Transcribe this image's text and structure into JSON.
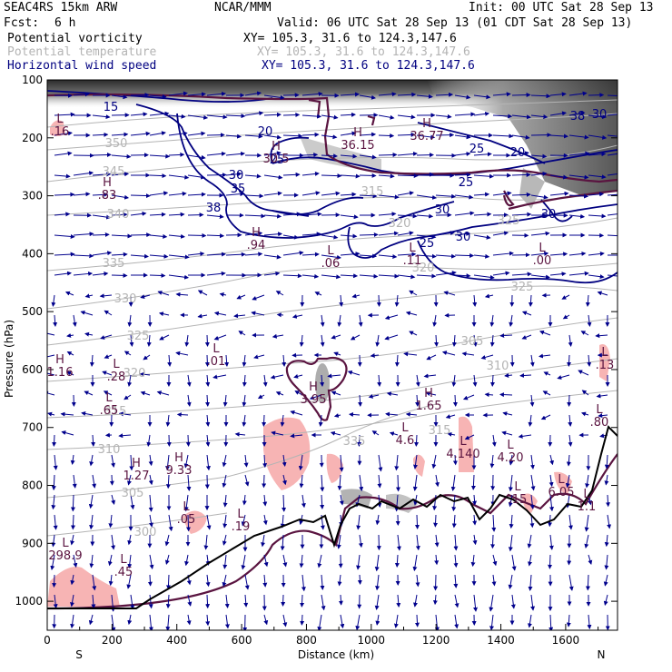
{
  "header": {
    "model": "SEAC4RS 15km ARW",
    "org": "NCAR/MMM",
    "init": "Init: 00 UTC Sat 28 Sep 13",
    "fcst_label": "Fcst:",
    "fcst_value": "6 h",
    "valid": "Valid: 06 UTC Sat 28 Sep 13 (01 CDT Sat 28 Sep 13)",
    "fields": [
      {
        "name": "Potential vorticity",
        "xy": "XY= 105.3, 31.6 to 124.3,147.6",
        "color": "#000000"
      },
      {
        "name": "Potential temperature",
        "xy": "XY= 105.3, 31.6 to 124.3,147.6",
        "color": "#b4b4b4"
      },
      {
        "name": "Horizontal wind speed",
        "xy": "XY= 105.3, 31.6 to 124.3,147.6",
        "color": "#000080"
      }
    ]
  },
  "chart_data": {
    "type": "cross-section",
    "xlabel": "Distance (km)",
    "ylabel": "Pressure (hPa)",
    "xlim": [
      0,
      1760
    ],
    "ylim": [
      1050,
      100
    ],
    "x_ticks": [
      0,
      200,
      400,
      600,
      800,
      1000,
      1200,
      1400,
      1600
    ],
    "y_ticks": [
      100,
      200,
      300,
      400,
      500,
      600,
      700,
      800,
      900,
      1000
    ],
    "x_end_labels": {
      "left": "S",
      "right": "N"
    },
    "colors": {
      "wind_contour": "#000080",
      "theta_contour": "#b4b4b4",
      "pv_contour": "#5a1440",
      "pv_shading": "#f7b4b4",
      "wind_vector": "#00008c",
      "terrain": "#000000"
    },
    "wind_speed_labels": [
      "15",
      "20",
      "25",
      "30",
      "35",
      "38",
      "25",
      "20",
      "25",
      "30",
      "30",
      "25",
      "30",
      "38",
      "30"
    ],
    "theta_labels": [
      "350",
      "345",
      "340",
      "335",
      "330",
      "325",
      "320",
      "315",
      "310",
      "305",
      "300",
      "315",
      "320",
      "325",
      "305",
      "310",
      "315",
      "320",
      "325",
      "335"
    ],
    "extrema": [
      {
        "type": "L",
        "value": ".16"
      },
      {
        "type": "H",
        "value": ".83"
      },
      {
        "type": "H",
        "value": ".94"
      },
      {
        "type": "H",
        "value": "30.5"
      },
      {
        "type": "H",
        "value": "36.15"
      },
      {
        "type": "H",
        "value": "36.77"
      },
      {
        "type": "L",
        "value": ".06"
      },
      {
        "type": "L",
        "value": ".11"
      },
      {
        "type": "L",
        "value": ".00"
      },
      {
        "type": "H",
        "value": "1.16"
      },
      {
        "type": "L",
        "value": ".28"
      },
      {
        "type": "L",
        "value": ".65"
      },
      {
        "type": "L",
        "value": ".01"
      },
      {
        "type": "H",
        "value": "3.95"
      },
      {
        "type": "H",
        "value": "1.65"
      },
      {
        "type": "L",
        "value": "4.6"
      },
      {
        "type": "L",
        "value": "4.140"
      },
      {
        "type": "L",
        "value": "4.20"
      },
      {
        "type": "H",
        "value": "1.27"
      },
      {
        "type": "H",
        "value": "9.33"
      },
      {
        "type": "L",
        "value": ".05"
      },
      {
        "type": "L",
        "value": ".19"
      },
      {
        "type": "L",
        "value": "298.9"
      },
      {
        "type": "L",
        "value": ".45"
      },
      {
        "type": "L",
        "value": "6.05"
      },
      {
        "type": "L",
        "value": ".80"
      },
      {
        "type": "L",
        "value": ".13"
      },
      {
        "type": "L",
        "value": ".15"
      },
      {
        "type": "L",
        "value": "1.1"
      }
    ]
  }
}
